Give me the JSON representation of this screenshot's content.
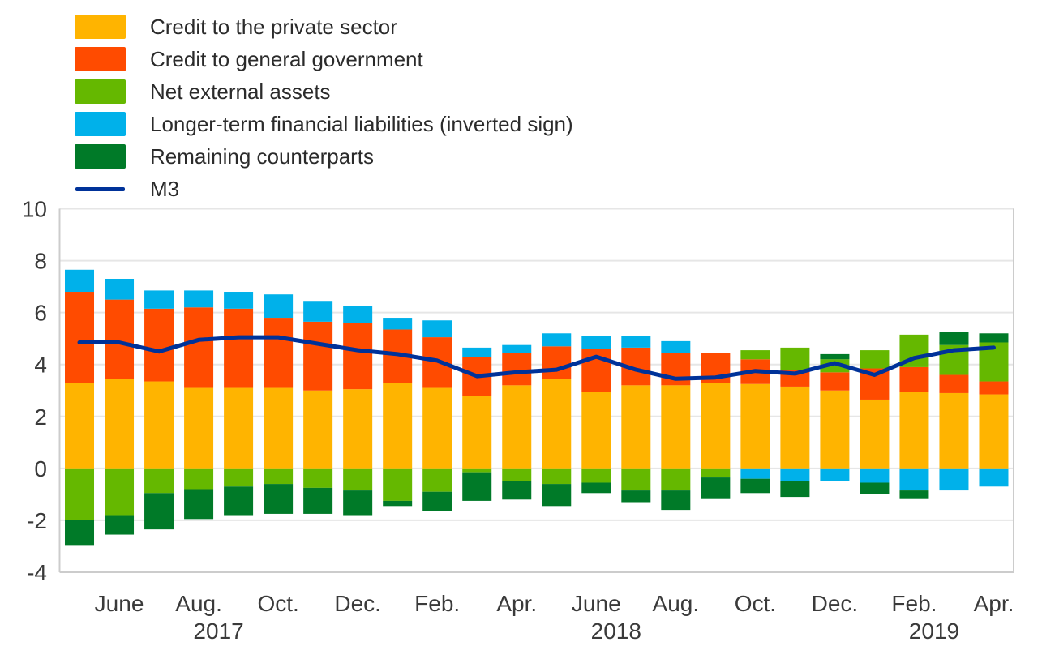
{
  "legend": {
    "items": [
      {
        "label": "Credit to the private sector",
        "color": "#FFB400",
        "type": "box",
        "name": "legend-private-sector"
      },
      {
        "label": "Credit to general government",
        "color": "#FF4B00",
        "type": "box",
        "name": "legend-general-government"
      },
      {
        "label": "Net external assets",
        "color": "#65B800",
        "type": "box",
        "name": "legend-net-external-assets"
      },
      {
        "label": "Longer-term financial liabilities (inverted sign)",
        "color": "#00B1EA",
        "type": "box",
        "name": "legend-longer-term-liabilities"
      },
      {
        "label": "Remaining counterparts",
        "color": "#007A28",
        "type": "box",
        "name": "legend-remaining-counterparts"
      },
      {
        "label": "M3",
        "color": "#003299",
        "type": "line",
        "name": "legend-m3"
      }
    ]
  },
  "y_axis": {
    "ticks": [
      10,
      8,
      6,
      4,
      2,
      0,
      -2,
      -4
    ],
    "min": -4,
    "max": 10
  },
  "x_axis": {
    "month_ticks": [
      {
        "label": "June",
        "bar": 1
      },
      {
        "label": "Aug.",
        "bar": 3
      },
      {
        "label": "Oct.",
        "bar": 5
      },
      {
        "label": "Dec.",
        "bar": 7
      },
      {
        "label": "Feb.",
        "bar": 9
      },
      {
        "label": "Apr.",
        "bar": 11
      },
      {
        "label": "June",
        "bar": 13
      },
      {
        "label": "Aug.",
        "bar": 15
      },
      {
        "label": "Oct.",
        "bar": 17
      },
      {
        "label": "Dec.",
        "bar": 19
      },
      {
        "label": "Feb.",
        "bar": 21
      },
      {
        "label": "Apr.",
        "bar": 23
      }
    ],
    "year_ticks": [
      {
        "label": "2017",
        "bar": 3
      },
      {
        "label": "2018",
        "bar": 13
      },
      {
        "label": "2019",
        "bar": 21
      }
    ]
  },
  "chart_data": {
    "type": "bar",
    "subtype": "stacked-bars-with-line-overlay",
    "title": "",
    "xlabel": "",
    "ylabel": "",
    "ylim": [
      -4,
      10
    ],
    "grid": true,
    "legend_position": "top-left",
    "categories": [
      "May 2017",
      "June 2017",
      "July 2017",
      "Aug. 2017",
      "Sep. 2017",
      "Oct. 2017",
      "Nov. 2017",
      "Dec. 2017",
      "Jan. 2018",
      "Feb. 2018",
      "Mar. 2018",
      "Apr. 2018",
      "May 2018",
      "June 2018",
      "July 2018",
      "Aug. 2018",
      "Sep. 2018",
      "Oct. 2018",
      "Nov. 2018",
      "Dec. 2018",
      "Jan. 2019",
      "Feb. 2019",
      "Mar. 2019",
      "Apr. 2019"
    ],
    "series": [
      {
        "name": "Credit to the private sector",
        "color": "#FFB400",
        "values": [
          3.3,
          3.45,
          3.35,
          3.1,
          3.1,
          3.1,
          3.0,
          3.05,
          3.3,
          3.1,
          2.8,
          3.2,
          3.45,
          2.95,
          3.2,
          3.2,
          3.3,
          3.25,
          3.15,
          3.0,
          2.65,
          2.95,
          2.9,
          2.85
        ]
      },
      {
        "name": "Credit to general government",
        "color": "#FF4B00",
        "values": [
          3.5,
          3.05,
          2.8,
          3.1,
          3.05,
          2.7,
          2.65,
          2.55,
          2.05,
          1.95,
          1.5,
          1.25,
          1.25,
          1.65,
          1.45,
          1.25,
          1.15,
          0.95,
          0.65,
          0.7,
          1.2,
          0.95,
          0.7,
          0.5
        ]
      },
      {
        "name": "Net external assets",
        "color": "#65B800",
        "values": [
          -2.0,
          -1.8,
          -0.95,
          -0.8,
          -0.7,
          -0.6,
          -0.75,
          -0.85,
          -1.25,
          -0.9,
          -0.15,
          -0.5,
          -0.6,
          -0.55,
          -0.85,
          -0.85,
          -0.35,
          0.35,
          0.85,
          0.5,
          0.7,
          1.25,
          1.15,
          1.5
        ]
      },
      {
        "name": "Longer-term financial liabilities (inverted sign)",
        "color": "#00B1EA",
        "values": [
          0.85,
          0.8,
          0.7,
          0.65,
          0.65,
          0.9,
          0.8,
          0.65,
          0.45,
          0.65,
          0.35,
          0.3,
          0.5,
          0.5,
          0.45,
          0.45,
          0.0,
          -0.4,
          -0.5,
          -0.5,
          -0.55,
          -0.85,
          -0.85,
          -0.7
        ]
      },
      {
        "name": "Remaining counterparts",
        "color": "#007A28",
        "values": [
          -0.95,
          -0.75,
          -1.4,
          -1.15,
          -1.1,
          -1.15,
          -1.0,
          -0.95,
          -0.2,
          -0.75,
          -1.1,
          -0.7,
          -0.85,
          -0.4,
          -0.45,
          -0.75,
          -0.8,
          -0.55,
          -0.6,
          0.2,
          -0.45,
          -0.3,
          0.5,
          0.35
        ]
      }
    ],
    "line_series": {
      "name": "M3",
      "color": "#003299",
      "values": [
        4.85,
        4.85,
        4.5,
        4.95,
        5.05,
        5.05,
        4.8,
        4.55,
        4.4,
        4.15,
        3.55,
        3.7,
        3.8,
        4.3,
        3.8,
        3.45,
        3.5,
        3.75,
        3.65,
        4.05,
        3.6,
        4.25,
        4.55,
        4.65
      ]
    }
  },
  "style": {
    "background": "#FFFFFF",
    "grid_color": "#E6E6E6",
    "border_color": "#CCCCCC",
    "axis_text_color": "#3A3A3A"
  }
}
